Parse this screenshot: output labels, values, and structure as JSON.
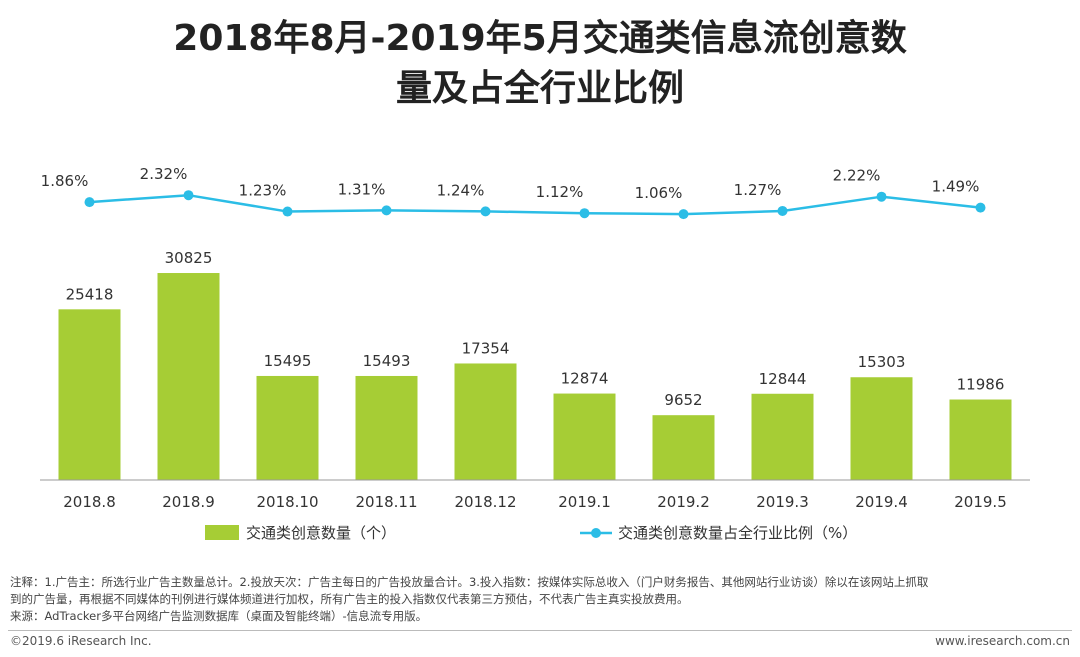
{
  "title": {
    "line1": "2018年8月-2019年5月交通类信息流创意数",
    "line2": "量及占全行业比例"
  },
  "colors": {
    "bar": "#a6cd35",
    "line": "#2bbde6",
    "text": "#333333",
    "axis": "#999999"
  },
  "chart_data": {
    "type": "bar",
    "categories": [
      "2018.8",
      "2018.9",
      "2018.10",
      "2018.11",
      "2018.12",
      "2019.1",
      "2019.2",
      "2019.3",
      "2019.4",
      "2019.5"
    ],
    "series": [
      {
        "name": "交通类创意数量（个）",
        "type": "bar",
        "values": [
          25418,
          30825,
          15495,
          15493,
          17354,
          12874,
          9652,
          12844,
          15303,
          11986
        ]
      },
      {
        "name": "交通类创意数量占全行业比例（%）",
        "type": "line",
        "values": [
          1.86,
          2.32,
          1.23,
          1.31,
          1.24,
          1.12,
          1.06,
          1.27,
          2.22,
          1.49
        ],
        "labels": [
          "1.86%",
          "2.32%",
          "1.23%",
          "1.31%",
          "1.24%",
          "1.12%",
          "1.06%",
          "1.27%",
          "2.22%",
          "1.49%"
        ]
      }
    ],
    "bar_ylim": [
      0,
      31000
    ],
    "line_ylim": [
      0,
      2.5
    ],
    "legend_position": "bottom"
  },
  "footer": {
    "note_line1": "注释：1.广告主：所选行业广告主数量总计。2.投放天次：广告主每日的广告投放量合计。3.投入指数：按媒体实际总收入（门户财务报告、其他网站行业访谈）除以在该网站上抓取",
    "note_line2": "到的广告量，再根据不同媒体的刊例进行媒体频道进行加权，所有广告主的投入指数仅代表第三方预估，不代表广告主真实投放费用。",
    "source": "来源：AdTracker多平台网络广告监测数据库（桌面及智能终端）-信息流专用版。",
    "copyright": "©2019.6 iResearch Inc.",
    "website": "www.iresearch.com.cn"
  }
}
